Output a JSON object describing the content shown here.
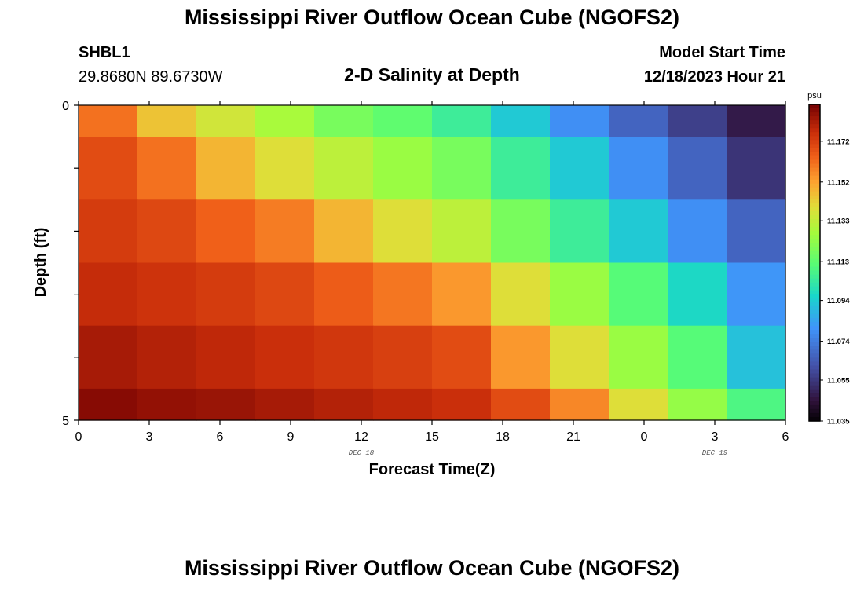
{
  "header": {
    "title": "Mississippi River Outflow Ocean Cube (NGOFS2)",
    "station_name": "SHBL1",
    "station_coords": "29.8680N  89.6730W",
    "plot_title": "2-D Salinity at Depth",
    "model_start_label": "Model Start Time",
    "model_start_value": "12/18/2023 Hour 21"
  },
  "footer": {
    "title": "Mississippi River Outflow Ocean Cube (NGOFS2)"
  },
  "chart_data": {
    "type": "heatmap",
    "title": "2-D Salinity at Depth",
    "xlabel": "Forecast Time(Z)",
    "ylabel": "Depth (ft)",
    "x_ticks": [
      "0",
      "3",
      "6",
      "9",
      "12",
      "15",
      "18",
      "21",
      "0",
      "3",
      "6"
    ],
    "x_day_labels": [
      {
        "label": "DEC 18",
        "at_tick": "12"
      },
      {
        "label": "DEC 19",
        "at_tick": "3"
      }
    ],
    "y_ticks": [
      "0",
      "5"
    ],
    "ylim": [
      0,
      5
    ],
    "colorbar": {
      "unit": "psu",
      "min": 11.035,
      "max": 11.19,
      "ticks": [
        "11.172",
        "11.152",
        "11.133",
        "11.113",
        "11.094",
        "11.074",
        "11.055",
        "11.035"
      ],
      "tick_values": [
        11.172,
        11.152,
        11.133,
        11.113,
        11.094,
        11.074,
        11.055,
        11.035
      ]
    },
    "time_hours_from_start": [
      0,
      2.5,
      5,
      7.5,
      10,
      12.5,
      15,
      17.5,
      20,
      22.5,
      25,
      27.5,
      30
    ],
    "depth_rows_ft": [
      0,
      0.5,
      1.5,
      2.5,
      3.5,
      4.5,
      5
    ],
    "values": [
      [
        11.162,
        11.146,
        11.137,
        11.129,
        11.119,
        11.114,
        11.106,
        11.094,
        11.08,
        11.068,
        11.058,
        11.048
      ],
      [
        11.17,
        11.162,
        11.149,
        11.14,
        11.133,
        11.126,
        11.119,
        11.106,
        11.094,
        11.08,
        11.068,
        11.055
      ],
      [
        11.174,
        11.171,
        11.165,
        11.16,
        11.149,
        11.14,
        11.133,
        11.119,
        11.106,
        11.094,
        11.08,
        11.068
      ],
      [
        11.178,
        11.176,
        11.174,
        11.171,
        11.166,
        11.161,
        11.155,
        11.14,
        11.126,
        11.112,
        11.098,
        11.082
      ],
      [
        11.183,
        11.181,
        11.179,
        11.177,
        11.175,
        11.173,
        11.17,
        11.155,
        11.14,
        11.126,
        11.112,
        11.092
      ],
      [
        11.188,
        11.186,
        11.185,
        11.183,
        11.181,
        11.179,
        11.177,
        11.17,
        11.158,
        11.14,
        11.125,
        11.11
      ]
    ],
    "grid": false
  }
}
